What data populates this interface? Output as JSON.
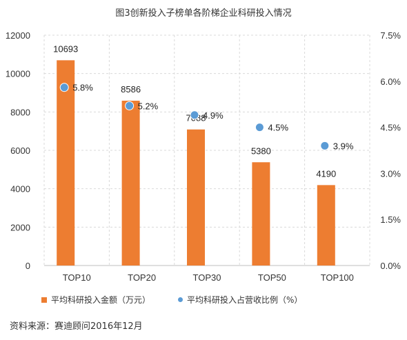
{
  "title": "图3创新投入子榜单各阶梯企业科研投入情况",
  "source": "资料来源：赛迪顾问2016年12月",
  "colors": {
    "bar": "#ed7d31",
    "dot": "#5b9bd5",
    "grid": "#d9d9d9"
  },
  "chart_data": {
    "type": "bar",
    "categories": [
      "TOP10",
      "TOP20",
      "TOP30",
      "TOP50",
      "TOP100"
    ],
    "series": [
      {
        "name": "平均科研投入金额（万元）",
        "axis": "left",
        "values": [
          10693,
          8586,
          7088,
          5380,
          4190
        ],
        "labels": [
          "10693",
          "8586",
          "7088",
          "5380",
          "4190"
        ]
      },
      {
        "name": "平均科研投入占营收比例（%）",
        "axis": "right",
        "mark": "dot",
        "values": [
          5.8,
          5.2,
          4.9,
          4.5,
          3.9
        ],
        "labels": [
          "5.8%",
          "5.2%",
          "4.9%",
          "4.5%",
          "3.9%"
        ]
      }
    ],
    "y_left": {
      "range": [
        0,
        12000
      ],
      "ticks": [
        0,
        2000,
        4000,
        6000,
        8000,
        10000,
        12000
      ],
      "tick_labels": [
        "0",
        "2000",
        "4000",
        "6000",
        "8000",
        "10000",
        "12000"
      ]
    },
    "y_right": {
      "range": [
        0,
        7.5
      ],
      "ticks": [
        0,
        1.5,
        3,
        4.5,
        6,
        7.5
      ],
      "tick_labels": [
        "0.0%",
        "1.5%",
        "3.0%",
        "4.5%",
        "6.0%",
        "7.5%"
      ]
    },
    "grid": true,
    "legend_position": "bottom"
  }
}
